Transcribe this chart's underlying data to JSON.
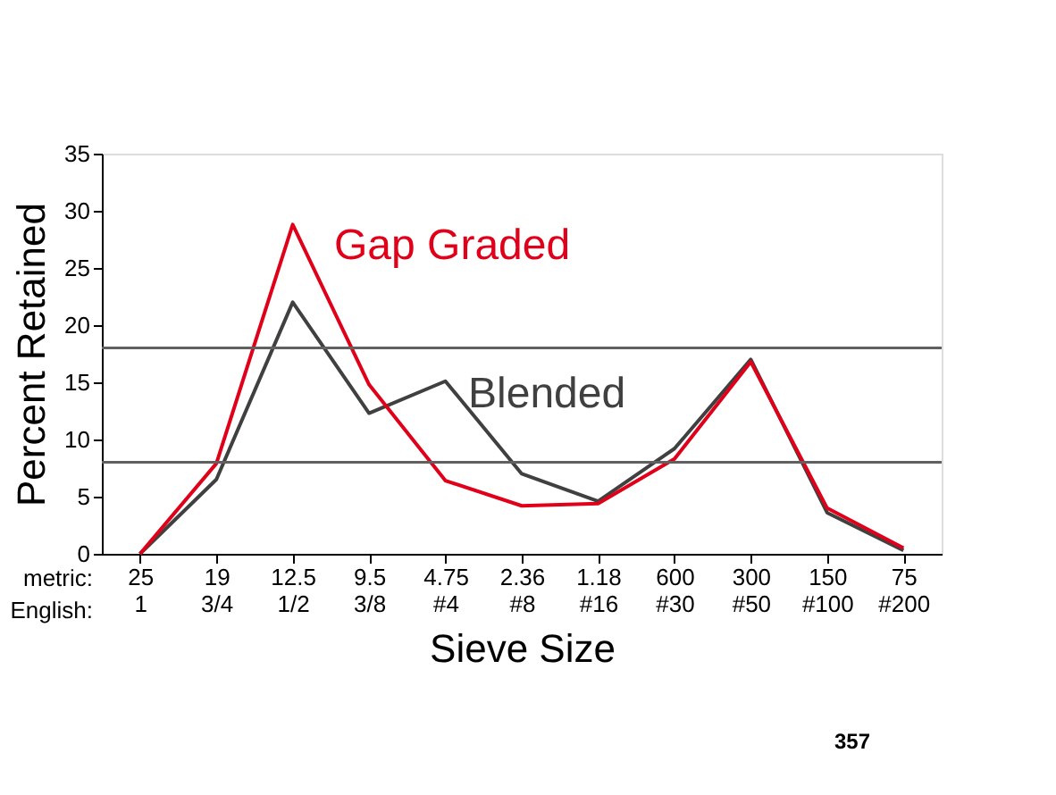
{
  "chart_data": {
    "type": "line",
    "xlabel": "Sieve Size",
    "ylabel": "Percent Retained",
    "categories": [
      "25\n1",
      "19\n3/4",
      "12.5\n1/2",
      "9.5\n3/8",
      "4.75\n#4",
      "2.36\n#8",
      "1.18\n#16",
      "600\n#30",
      "300\n#50",
      "150\n#100",
      "75\n#200"
    ],
    "series": [
      {
        "name": "Blended",
        "color": "#404040",
        "values": [
          0,
          6.5,
          22,
          12.3,
          15.1,
          7,
          4.6,
          9.2,
          17,
          3.6,
          0.3
        ]
      },
      {
        "name": "Gap Graded",
        "color": "#e0001a",
        "values": [
          0,
          7.9,
          28.8,
          14.8,
          6.4,
          4.2,
          4.4,
          8.3,
          16.8,
          4,
          0.5
        ]
      }
    ],
    "ylim": [
      0,
      35
    ],
    "yticks": [
      0,
      5,
      10,
      15,
      20,
      25,
      30,
      35
    ],
    "ref_lines": [
      {
        "axis": "y",
        "value": 18,
        "color": "#606060"
      },
      {
        "axis": "y",
        "value": 8,
        "color": "#606060"
      }
    ],
    "annotations": [
      "metric:",
      "English:",
      "357"
    ],
    "grid": false,
    "legend": false,
    "marker": "none",
    "line_style": "solid"
  }
}
